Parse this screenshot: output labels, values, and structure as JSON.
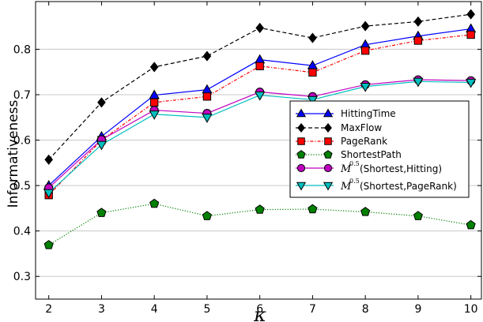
{
  "chart_data": {
    "type": "line",
    "xlabel": "κ",
    "ylabel": "Informativeness",
    "x": [
      2,
      3,
      4,
      5,
      6,
      7,
      8,
      9,
      10
    ],
    "xlim": [
      1.75,
      10.2
    ],
    "ylim": [
      0.25,
      0.905
    ],
    "yticks": [
      0.3,
      0.4,
      0.5,
      0.6,
      0.7,
      0.8
    ],
    "grid": "horizontal",
    "legend_position": "center-right",
    "series": [
      {
        "name": "HittingTime",
        "values": [
          0.5,
          0.608,
          0.699,
          0.711,
          0.777,
          0.764,
          0.81,
          0.829,
          0.845
        ],
        "color": "#0000ff",
        "marker": "triangle-up",
        "marker_fill": "#0000ff",
        "dash": "solid"
      },
      {
        "name": "MaxFlow",
        "values": [
          0.557,
          0.683,
          0.761,
          0.785,
          0.847,
          0.825,
          0.851,
          0.861,
          0.877
        ],
        "color": "#000000",
        "marker": "diamond",
        "marker_fill": "#000000",
        "dash": "dashed"
      },
      {
        "name": "PageRank",
        "values": [
          0.479,
          0.6,
          0.683,
          0.696,
          0.763,
          0.749,
          0.797,
          0.819,
          0.832
        ],
        "color": "#ff0000",
        "marker": "square",
        "marker_fill": "#ff0000",
        "dash": "dashdot"
      },
      {
        "name": "ShortestPath",
        "values": [
          0.369,
          0.44,
          0.46,
          0.433,
          0.447,
          0.448,
          0.442,
          0.433,
          0.413
        ],
        "color": "#008000",
        "marker": "pentagon",
        "marker_fill": "#008000",
        "dash": "dotted"
      },
      {
        "name": "M^0.5(Shortest,Hitting)",
        "legend": {
          "m": "M",
          "sup": "0.5",
          "rest": "(Shortest,Hitting)"
        },
        "values": [
          0.495,
          0.601,
          0.666,
          0.659,
          0.706,
          0.696,
          0.722,
          0.733,
          0.731
        ],
        "color": "#bf00bf",
        "marker": "circle",
        "marker_fill": "#bf00bf",
        "dash": "solid"
      },
      {
        "name": "M^0.5(Shortest,PageRank)",
        "legend": {
          "m": "M",
          "sup": "0.5",
          "rest": "(Shortest,PageRank)"
        },
        "values": [
          0.484,
          0.59,
          0.657,
          0.65,
          0.699,
          0.689,
          0.718,
          0.729,
          0.727
        ],
        "color": "#00bfbf",
        "marker": "triangle-down",
        "marker_fill": "#00bfbf",
        "dash": "solid"
      }
    ]
  }
}
